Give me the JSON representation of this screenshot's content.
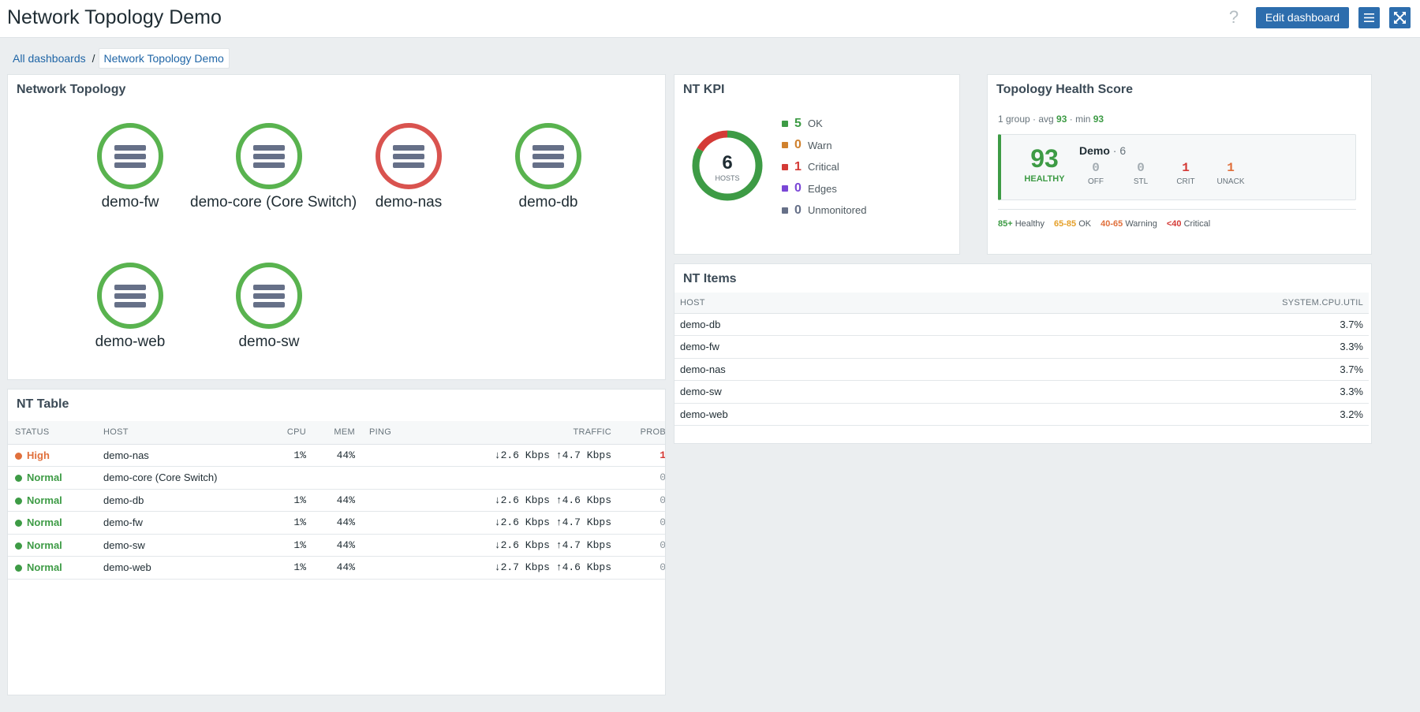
{
  "header": {
    "title": "Network Topology Demo",
    "help_glyph": "?",
    "edit_label": "Edit dashboard"
  },
  "breadcrumb": {
    "root": "All dashboards",
    "sep": "/",
    "current": "Network Topology Demo"
  },
  "topology": {
    "title": "Network Topology",
    "nodes": [
      {
        "label": "demo-fw",
        "status": "ok",
        "color": "#59b34f"
      },
      {
        "label": "demo-core (Core Switch)",
        "status": "ok",
        "color": "#59b34f"
      },
      {
        "label": "demo-nas",
        "status": "problem",
        "color": "#d9534f"
      },
      {
        "label": "demo-db",
        "status": "ok",
        "color": "#59b34f"
      },
      {
        "label": "demo-web",
        "status": "ok",
        "color": "#59b34f"
      },
      {
        "label": "demo-sw",
        "status": "ok",
        "color": "#59b34f"
      }
    ]
  },
  "nt_table": {
    "title": "NT Table",
    "columns": [
      "STATUS",
      "HOST",
      "CPU",
      "MEM",
      "PING",
      "TRAFFIC",
      "PROB"
    ],
    "rows": [
      {
        "status": "High",
        "status_color": "#e0703c",
        "host": "demo-nas",
        "cpu": "1%",
        "mem": "44%",
        "ping": "",
        "traffic": "↓2.6 Kbps ↑4.7 Kbps",
        "prob": "1",
        "prob_color": "#d43a36"
      },
      {
        "status": "Normal",
        "status_color": "#3d9b45",
        "host": "demo-core (Core Switch)",
        "cpu": "",
        "mem": "",
        "ping": "",
        "traffic": "",
        "prob": "0",
        "prob_color": "#8a949b"
      },
      {
        "status": "Normal",
        "status_color": "#3d9b45",
        "host": "demo-db",
        "cpu": "1%",
        "mem": "44%",
        "ping": "",
        "traffic": "↓2.6 Kbps ↑4.6 Kbps",
        "prob": "0",
        "prob_color": "#8a949b"
      },
      {
        "status": "Normal",
        "status_color": "#3d9b45",
        "host": "demo-fw",
        "cpu": "1%",
        "mem": "44%",
        "ping": "",
        "traffic": "↓2.6 Kbps ↑4.7 Kbps",
        "prob": "0",
        "prob_color": "#8a949b"
      },
      {
        "status": "Normal",
        "status_color": "#3d9b45",
        "host": "demo-sw",
        "cpu": "1%",
        "mem": "44%",
        "ping": "",
        "traffic": "↓2.6 Kbps ↑4.7 Kbps",
        "prob": "0",
        "prob_color": "#8a949b"
      },
      {
        "status": "Normal",
        "status_color": "#3d9b45",
        "host": "demo-web",
        "cpu": "1%",
        "mem": "44%",
        "ping": "",
        "traffic": "↓2.7 Kbps ↑4.6 Kbps",
        "prob": "0",
        "prob_color": "#8a949b"
      }
    ]
  },
  "kpi": {
    "title": "NT KPI",
    "total": "6",
    "total_label": "HOSTS",
    "ok_fraction": 0.833,
    "critical_fraction": 0.167,
    "items": [
      {
        "count": "5",
        "label": "OK",
        "color": "#3d9b45"
      },
      {
        "count": "0",
        "label": "Warn",
        "color": "#d0812d"
      },
      {
        "count": "1",
        "label": "Critical",
        "color": "#d43a36"
      },
      {
        "count": "0",
        "label": "Edges",
        "color": "#7a47d6"
      },
      {
        "count": "0",
        "label": "Unmonitored",
        "color": "#667088"
      }
    ]
  },
  "health": {
    "title": "Topology Health Score",
    "sub_prefix": "1 group · avg ",
    "avg": "93",
    "sub_mid": " · min ",
    "min": "93",
    "score": "93",
    "state": "HEALTHY",
    "group_name": "Demo",
    "group_count": " · 6",
    "metrics": [
      {
        "value": "0",
        "label": "OFF",
        "color": "#a3acb2"
      },
      {
        "value": "0",
        "label": "STL",
        "color": "#a3acb2"
      },
      {
        "value": "1",
        "label": "CRIT",
        "color": "#d43a36"
      },
      {
        "value": "1",
        "label": "UNACK",
        "color": "#e0703c"
      }
    ],
    "legend": [
      {
        "range": "85+",
        "label": " Healthy",
        "color": "#3d9b45"
      },
      {
        "range": "65-85",
        "label": " OK",
        "color": "#e5a02a"
      },
      {
        "range": "40-65",
        "label": " Warning",
        "color": "#e0703c"
      },
      {
        "range": "<40",
        "label": " Critical",
        "color": "#d43a36"
      }
    ]
  },
  "items": {
    "title": "NT Items",
    "columns": [
      "HOST",
      "SYSTEM.CPU.UTIL"
    ],
    "rows": [
      {
        "host": "demo-db",
        "value": "3.7%"
      },
      {
        "host": "demo-fw",
        "value": "3.3%"
      },
      {
        "host": "demo-nas",
        "value": "3.7%"
      },
      {
        "host": "demo-sw",
        "value": "3.3%"
      },
      {
        "host": "demo-web",
        "value": "3.2%"
      }
    ]
  }
}
